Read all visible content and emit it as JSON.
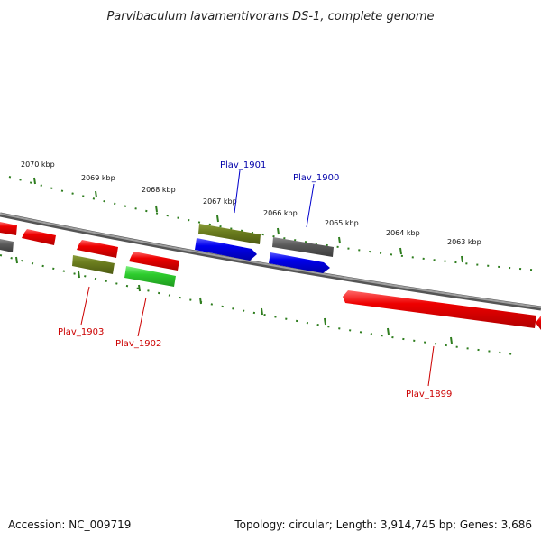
{
  "title": "Parvibaculum lavamentivorans DS-1, complete genome",
  "footer": {
    "accession": "Accession: NC_009719",
    "topology": "Topology: circular; Length: 3,914,745 bp; Genes: 3,686"
  },
  "colors": {
    "forward": "#0000ee",
    "reverse": "#ee0000",
    "olive": "#6b7d1e",
    "green": "#2ecc2e",
    "gray": "#5a5a5a",
    "backbone": "#7a7a7a",
    "tick": "#2e7d1e",
    "label_forward": "#0000aa",
    "label_reverse": "#cc0000"
  },
  "scale_ticks": [
    "2070 kbp",
    "2069 kbp",
    "2068 kbp",
    "2067 kbp",
    "2066 kbp",
    "2065 kbp",
    "2064 kbp",
    "2063 kbp"
  ],
  "gene_labels": {
    "plav_1901": "Plav_1901",
    "plav_1900": "Plav_1900",
    "plav_1903": "Plav_1903",
    "plav_1902": "Plav_1902",
    "plav_1899": "Plav_1899"
  }
}
